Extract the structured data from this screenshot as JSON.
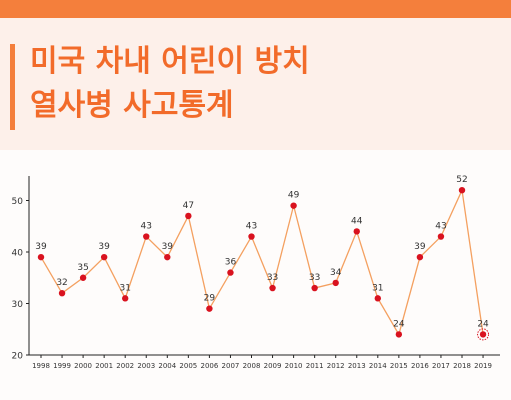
{
  "header": {
    "title_line1": "미국 차내 어린이 방치",
    "title_line2": "열사병 사고통계"
  },
  "colors": {
    "accent": "#f47f3c",
    "title": "#f26b2a",
    "header_bg": "#fdf0ea",
    "line": "#f4a060",
    "point": "#d9121f"
  },
  "chart_data": {
    "type": "line",
    "title": "",
    "xlabel": "",
    "ylabel": "",
    "ylim": [
      20,
      55
    ],
    "yticks": [
      20,
      30,
      40,
      50
    ],
    "grid": false,
    "x": [
      "1998",
      "1999",
      "2000",
      "2001",
      "2002",
      "2003",
      "2004",
      "2005",
      "2006",
      "2007",
      "2008",
      "2009",
      "2010",
      "2011",
      "2012",
      "2013",
      "2014",
      "2015",
      "2016",
      "2017",
      "2018",
      "2019"
    ],
    "values": [
      39,
      32,
      35,
      39,
      31,
      43,
      39,
      47,
      29,
      36,
      43,
      33,
      49,
      33,
      34,
      44,
      31,
      24,
      39,
      43,
      52,
      24
    ],
    "highlight_last": true
  }
}
